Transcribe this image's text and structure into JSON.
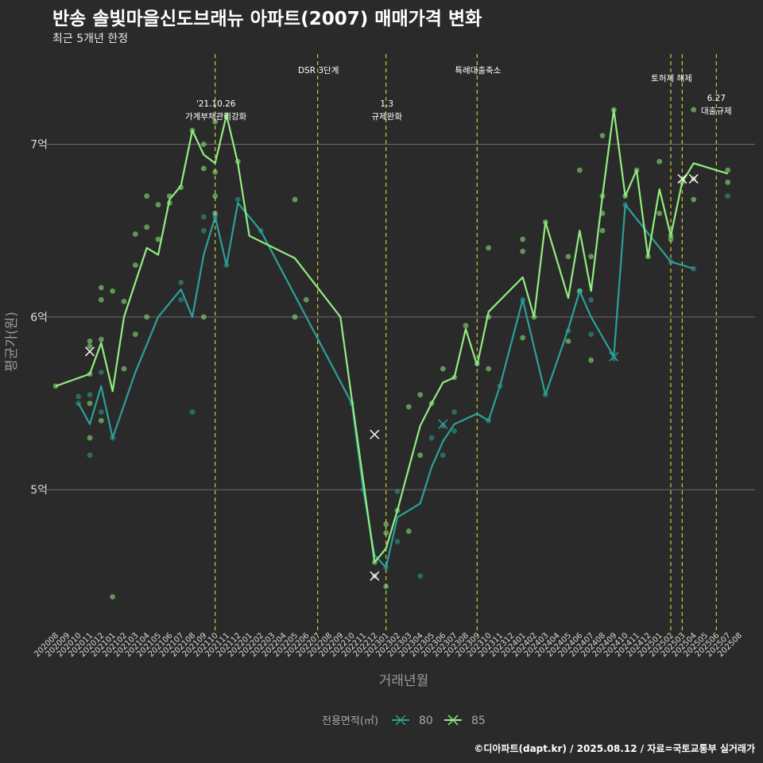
{
  "title": "반송 솔빛마을신도브래뉴 아파트(2007) 매매가격 변화",
  "subtitle": "최근 5개년 한정",
  "caption": "©디아파트(dapt.kr) / 2025.08.12 / 자료=국토교통부 실거래가",
  "colors": {
    "s80": "#2aa198",
    "s85": "#90ee7e",
    "vline": "#cccc33",
    "grid": "#6e6e6e",
    "bg": "#2b2a2b"
  },
  "chart_data": {
    "type": "line",
    "title": "반송 솔빛마을신도브래뉴 아파트(2007) 매매가격 변화",
    "subtitle": "최근 5개년 한정",
    "xlabel": "거래년월",
    "ylabel": "평균가(원)",
    "ylim": [
      4.2,
      7.55
    ],
    "yticks": [
      {
        "value": 5,
        "label": "5억"
      },
      {
        "value": 6,
        "label": "6억"
      },
      {
        "value": 7,
        "label": "7억"
      }
    ],
    "grid": true,
    "legend": {
      "title": "전용면적(㎡)",
      "position": "bottom"
    },
    "categories": [
      "202008",
      "202009",
      "202010",
      "202011",
      "202012",
      "202101",
      "202102",
      "202103",
      "202104",
      "202105",
      "202106",
      "202107",
      "202108",
      "202109",
      "202110",
      "202111",
      "202112",
      "202201",
      "202202",
      "202203",
      "202204",
      "202205",
      "202206",
      "202207",
      "202208",
      "202209",
      "202210",
      "202211",
      "202212",
      "202301",
      "202302",
      "202303",
      "202304",
      "202305",
      "202306",
      "202307",
      "202308",
      "202309",
      "202310",
      "202311",
      "202312",
      "202401",
      "202402",
      "202403",
      "202404",
      "202405",
      "202406",
      "202407",
      "202408",
      "202409",
      "202410",
      "202411",
      "202412",
      "202501",
      "202502",
      "202503",
      "202504",
      "202505",
      "202506",
      "202507",
      "202508"
    ],
    "series": [
      {
        "name": "80",
        "color": "#2aa198",
        "line": [
          [
            "202010",
            5.5
          ],
          [
            "202011",
            5.38
          ],
          [
            "202012",
            5.6
          ],
          [
            "202101",
            5.3
          ],
          [
            "202103",
            5.68
          ],
          [
            "202105",
            6.0
          ],
          [
            "202107",
            6.16
          ],
          [
            "202108",
            6.0
          ],
          [
            "202109",
            6.36
          ],
          [
            "202110",
            6.58
          ],
          [
            "202111",
            6.3
          ],
          [
            "202112",
            6.66
          ],
          [
            "202201",
            6.58
          ],
          [
            "202202",
            6.5
          ],
          [
            "202210",
            5.5
          ],
          [
            "202211",
            5.0
          ],
          [
            "202212",
            4.62
          ],
          [
            "202301",
            4.55
          ],
          [
            "202302",
            4.84
          ],
          [
            "202304",
            4.92
          ],
          [
            "202305",
            5.13
          ],
          [
            "202306",
            5.28
          ],
          [
            "202307",
            5.38
          ],
          [
            "202309",
            5.44
          ],
          [
            "202310",
            5.4
          ],
          [
            "202311",
            5.6
          ],
          [
            "202401",
            6.1
          ],
          [
            "202403",
            5.55
          ],
          [
            "202405",
            5.93
          ],
          [
            "202406",
            6.15
          ],
          [
            "202407",
            6.0
          ],
          [
            "202409",
            5.77
          ],
          [
            "202410",
            6.65
          ],
          [
            "202502",
            6.32
          ],
          [
            "202504",
            6.28
          ]
        ],
        "points": [
          [
            "202010",
            5.54
          ],
          [
            "202010",
            5.5
          ],
          [
            "202011",
            5.55
          ],
          [
            "202011",
            5.2
          ],
          [
            "202012",
            5.68
          ],
          [
            "202012",
            5.45
          ],
          [
            "202101",
            5.3
          ],
          [
            "202107",
            6.2
          ],
          [
            "202107",
            6.1
          ],
          [
            "202108",
            5.45
          ],
          [
            "202109",
            6.58
          ],
          [
            "202109",
            6.5
          ],
          [
            "202110",
            6.58
          ],
          [
            "202111",
            6.3
          ],
          [
            "202112",
            6.68
          ],
          [
            "202202",
            6.5
          ],
          [
            "202210",
            5.5
          ],
          [
            "202211",
            5.0
          ],
          [
            "202301",
            4.55
          ],
          [
            "202302",
            4.7
          ],
          [
            "202302",
            4.99
          ],
          [
            "202304",
            4.5
          ],
          [
            "202305",
            5.3
          ],
          [
            "202306",
            5.37
          ],
          [
            "202306",
            5.2
          ],
          [
            "202307",
            5.45
          ],
          [
            "202307",
            5.34
          ],
          [
            "202310",
            5.4
          ],
          [
            "202311",
            5.6
          ],
          [
            "202401",
            6.1
          ],
          [
            "202403",
            5.55
          ],
          [
            "202405",
            5.92
          ],
          [
            "202406",
            6.15
          ],
          [
            "202407",
            6.1
          ],
          [
            "202407",
            5.9
          ],
          [
            "202409",
            5.76
          ],
          [
            "202410",
            6.65
          ],
          [
            "202502",
            6.32
          ],
          [
            "202504",
            6.28
          ],
          [
            "202507",
            6.7
          ]
        ],
        "cancelled": [
          [
            "202306",
            5.38
          ],
          [
            "202409",
            5.77
          ]
        ]
      },
      {
        "name": "85",
        "color": "#90ee7e",
        "line": [
          [
            "202008",
            5.6
          ],
          [
            "202011",
            5.67
          ],
          [
            "202012",
            5.85
          ],
          [
            "202101",
            5.57
          ],
          [
            "202102",
            6.0
          ],
          [
            "202103",
            6.2
          ],
          [
            "202104",
            6.4
          ],
          [
            "202105",
            6.36
          ],
          [
            "202106",
            6.68
          ],
          [
            "202107",
            6.76
          ],
          [
            "202108",
            7.08
          ],
          [
            "202109",
            6.94
          ],
          [
            "202110",
            6.89
          ],
          [
            "202111",
            7.17
          ],
          [
            "202112",
            6.89
          ],
          [
            "202201",
            6.47
          ],
          [
            "202205",
            6.34
          ],
          [
            "202209",
            6.0
          ],
          [
            "202212",
            4.58
          ],
          [
            "202301",
            4.66
          ],
          [
            "202302",
            4.88
          ],
          [
            "202304",
            5.37
          ],
          [
            "202305",
            5.5
          ],
          [
            "202306",
            5.62
          ],
          [
            "202307",
            5.65
          ],
          [
            "202308",
            5.93
          ],
          [
            "202309",
            5.72
          ],
          [
            "202310",
            6.03
          ],
          [
            "202401",
            6.23
          ],
          [
            "202402",
            6.0
          ],
          [
            "202403",
            6.55
          ],
          [
            "202405",
            6.11
          ],
          [
            "202406",
            6.5
          ],
          [
            "202407",
            6.15
          ],
          [
            "202408",
            6.7
          ],
          [
            "202409",
            7.2
          ],
          [
            "202410",
            6.7
          ],
          [
            "202411",
            6.85
          ],
          [
            "202412",
            6.35
          ],
          [
            "202501",
            6.74
          ],
          [
            "202502",
            6.47
          ],
          [
            "202503",
            6.78
          ],
          [
            "202504",
            6.89
          ],
          [
            "202507",
            6.83
          ]
        ],
        "points": [
          [
            "202008",
            5.6
          ],
          [
            "202011",
            5.86
          ],
          [
            "202011",
            5.83
          ],
          [
            "202011",
            5.5
          ],
          [
            "202011",
            5.3
          ],
          [
            "202011",
            5.67
          ],
          [
            "202012",
            6.17
          ],
          [
            "202012",
            6.1
          ],
          [
            "202012",
            5.87
          ],
          [
            "202012",
            5.4
          ],
          [
            "202101",
            6.15
          ],
          [
            "202101",
            4.38
          ],
          [
            "202102",
            6.09
          ],
          [
            "202102",
            5.7
          ],
          [
            "202103",
            6.48
          ],
          [
            "202103",
            5.9
          ],
          [
            "202103",
            6.3
          ],
          [
            "202104",
            6.7
          ],
          [
            "202104",
            6.52
          ],
          [
            "202104",
            6.0
          ],
          [
            "202105",
            6.65
          ],
          [
            "202105",
            6.45
          ],
          [
            "202106",
            6.7
          ],
          [
            "202106",
            6.66
          ],
          [
            "202107",
            6.75
          ],
          [
            "202108",
            7.08
          ],
          [
            "202109",
            7.0
          ],
          [
            "202109",
            6.86
          ],
          [
            "202109",
            6.0
          ],
          [
            "202110",
            7.13
          ],
          [
            "202110",
            6.84
          ],
          [
            "202110",
            6.7
          ],
          [
            "202110",
            6.6
          ],
          [
            "202111",
            7.17
          ],
          [
            "202112",
            6.9
          ],
          [
            "202205",
            6.68
          ],
          [
            "202205",
            6.0
          ],
          [
            "202206",
            6.1
          ],
          [
            "202212",
            4.58
          ],
          [
            "202212",
            4.5
          ],
          [
            "202301",
            4.8
          ],
          [
            "202301",
            4.75
          ],
          [
            "202301",
            4.44
          ],
          [
            "202302",
            4.88
          ],
          [
            "202303",
            5.48
          ],
          [
            "202303",
            4.76
          ],
          [
            "202304",
            5.55
          ],
          [
            "202304",
            5.2
          ],
          [
            "202305",
            5.5
          ],
          [
            "202306",
            5.7
          ],
          [
            "202307",
            5.65
          ],
          [
            "202308",
            5.95
          ],
          [
            "202309",
            5.73
          ],
          [
            "202310",
            6.4
          ],
          [
            "202310",
            6.0
          ],
          [
            "202310",
            5.7
          ],
          [
            "202401",
            6.45
          ],
          [
            "202401",
            6.38
          ],
          [
            "202401",
            5.88
          ],
          [
            "202402",
            6.0
          ],
          [
            "202403",
            6.55
          ],
          [
            "202405",
            6.35
          ],
          [
            "202405",
            5.86
          ],
          [
            "202406",
            6.85
          ],
          [
            "202406",
            6.15
          ],
          [
            "202407",
            6.35
          ],
          [
            "202407",
            5.75
          ],
          [
            "202408",
            7.05
          ],
          [
            "202408",
            6.7
          ],
          [
            "202408",
            6.6
          ],
          [
            "202408",
            6.5
          ],
          [
            "202409",
            7.2
          ],
          [
            "202410",
            6.7
          ],
          [
            "202411",
            6.85
          ],
          [
            "202412",
            6.35
          ],
          [
            "202501",
            6.9
          ],
          [
            "202501",
            6.6
          ],
          [
            "202502",
            6.47
          ],
          [
            "202502",
            6.45
          ],
          [
            "202503",
            6.78
          ],
          [
            "202504",
            7.2
          ],
          [
            "202504",
            6.8
          ],
          [
            "202504",
            6.68
          ],
          [
            "202507",
            6.85
          ],
          [
            "202507",
            6.78
          ]
        ],
        "cancelled": [
          [
            "202011",
            5.8
          ],
          [
            "202212",
            5.32
          ],
          [
            "202212",
            4.5
          ],
          [
            "202503",
            6.8
          ],
          [
            "202504",
            6.8
          ]
        ]
      }
    ],
    "events": [
      {
        "at": "202110",
        "label": "'21.10.26\n가계부채관리강화",
        "row": 1
      },
      {
        "at": "202207",
        "label": "DSR 3단계",
        "row": 2
      },
      {
        "at": "202301",
        "label": "1.3\n규제완화",
        "row": 1
      },
      {
        "at": "202309",
        "label": "특례대출축소",
        "row": 2
      },
      {
        "at": "202502",
        "label": "토허제 해제",
        "row": 0
      },
      {
        "at": "202503",
        "label": "",
        "row": 0
      },
      {
        "at": "202506",
        "label": "6.27\n대출규제",
        "row": 3
      }
    ]
  }
}
